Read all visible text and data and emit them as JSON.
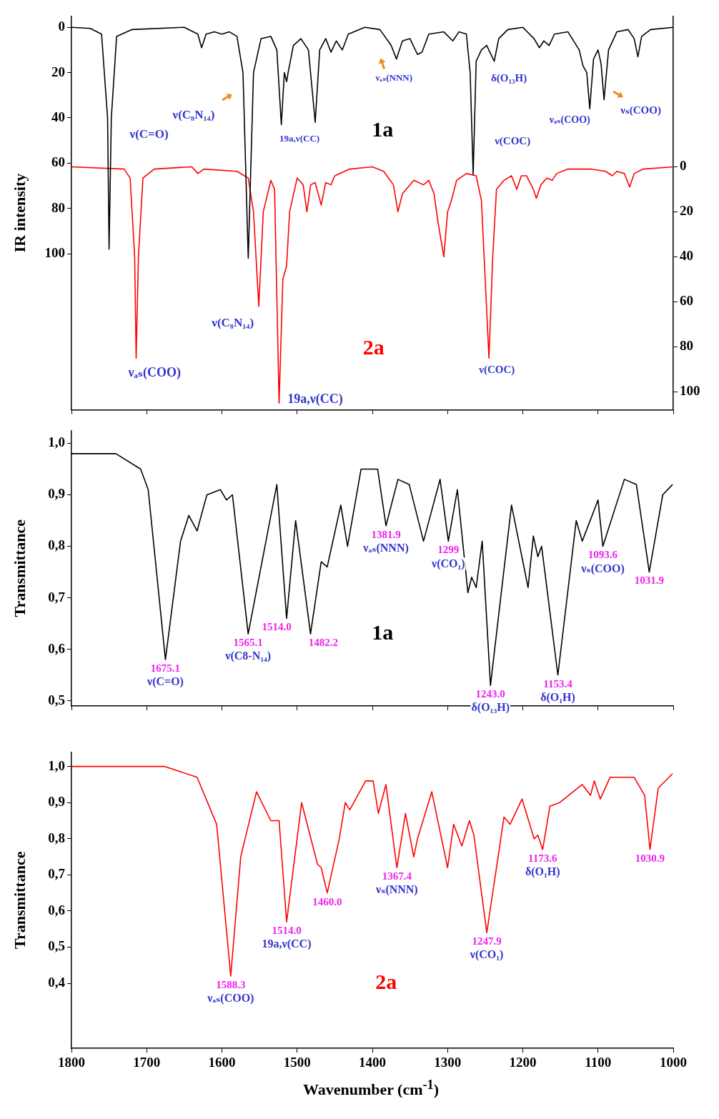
{
  "chart_data": [
    {
      "type": "line",
      "ylabel": "IR intensity",
      "xlim": [
        1800,
        1000
      ],
      "xticks": [
        {
          "value": 1800,
          "label": null
        },
        {
          "value": 1700,
          "label": null
        },
        {
          "value": 1600,
          "label": null
        },
        {
          "value": 1500,
          "label": null
        },
        {
          "value": 1400,
          "label": null
        },
        {
          "value": 1300,
          "label": null
        },
        {
          "value": 1200,
          "label": null
        },
        {
          "value": 1100,
          "label": null
        },
        {
          "value": 1000,
          "label": null
        }
      ],
      "ylim": [
        169,
        -5
      ],
      "yticks": [
        0,
        20,
        40,
        60,
        80,
        100
      ],
      "y2lim": [
        108,
        -67
      ],
      "y2ticks": [
        0,
        20,
        40,
        60,
        80,
        100
      ],
      "tick_labels": "y",
      "series": [
        {
          "name": "1a",
          "color": "#000000",
          "x": [
            1800,
            1775,
            1760,
            1752,
            1750,
            1747,
            1740,
            1720,
            1650,
            1632,
            1627,
            1621,
            1610,
            1600,
            1590,
            1580,
            1572,
            1565,
            1558,
            1548,
            1535,
            1527,
            1521,
            1517,
            1514,
            1512,
            1505,
            1495,
            1485,
            1476,
            1470,
            1462,
            1455,
            1448,
            1440,
            1432,
            1410,
            1390,
            1375,
            1368,
            1360,
            1350,
            1340,
            1334,
            1325,
            1305,
            1293,
            1285,
            1275,
            1270,
            1266,
            1262,
            1255,
            1248,
            1238,
            1232,
            1220,
            1200,
            1185,
            1178,
            1172,
            1165,
            1158,
            1140,
            1125,
            1120,
            1115,
            1111,
            1106,
            1100,
            1096,
            1092,
            1086,
            1075,
            1060,
            1052,
            1047,
            1042,
            1030,
            1000
          ],
          "values": [
            0,
            0.5,
            3,
            40,
            98,
            40,
            4,
            1,
            0,
            3,
            9,
            3,
            2,
            3,
            2,
            4,
            20,
            102,
            20,
            5,
            4,
            10,
            43,
            20,
            24,
            20,
            8,
            5,
            10,
            42,
            10,
            5,
            11,
            6,
            10,
            3,
            0,
            1,
            8,
            14,
            6,
            5,
            12,
            11,
            3,
            2,
            6,
            2,
            3,
            20,
            65,
            15,
            10,
            8,
            15,
            5,
            1,
            0,
            5,
            9,
            6,
            8,
            3,
            2,
            10,
            17,
            20,
            36,
            14,
            10,
            16,
            32,
            10,
            2,
            1,
            5,
            13,
            4,
            1,
            0
          ]
        },
        {
          "name": "2a",
          "color": "#ff0000",
          "axis": "y2",
          "x": [
            1800,
            1730,
            1722,
            1716,
            1714,
            1711,
            1705,
            1690,
            1640,
            1632,
            1624,
            1580,
            1565,
            1558,
            1551,
            1545,
            1535,
            1530,
            1524,
            1519,
            1514,
            1510,
            1500,
            1492,
            1487,
            1482,
            1476,
            1468,
            1462,
            1455,
            1450,
            1430,
            1400,
            1385,
            1372,
            1366,
            1360,
            1355,
            1345,
            1332,
            1325,
            1318,
            1313,
            1305,
            1300,
            1295,
            1288,
            1275,
            1262,
            1255,
            1250,
            1245,
            1240,
            1235,
            1225,
            1215,
            1208,
            1202,
            1195,
            1186,
            1182,
            1176,
            1168,
            1161,
            1155,
            1140,
            1110,
            1090,
            1081,
            1075,
            1065,
            1058,
            1052,
            1040,
            1000
          ],
          "values": [
            0,
            1,
            5,
            40,
            85,
            40,
            5,
            1,
            0,
            3,
            1,
            2,
            5,
            20,
            62,
            20,
            6,
            10,
            105,
            50,
            44,
            20,
            5,
            8,
            20,
            8,
            7,
            17,
            7,
            8,
            4,
            1,
            0,
            2,
            8,
            20,
            12,
            10,
            6,
            8,
            6,
            12,
            24,
            40,
            20,
            15,
            6,
            3,
            4,
            15,
            50,
            85,
            40,
            10,
            6,
            4,
            10,
            4,
            4,
            10,
            14,
            8,
            5,
            6,
            3,
            1,
            1,
            2,
            4,
            2,
            3,
            9,
            3,
            1,
            0
          ]
        }
      ],
      "annotations": [
        "ν(C=O)",
        "ν(C₈N₁₄)",
        "19a,ν(CC)",
        "νₐₛ(NNN)",
        "δ(O₁₃H)",
        "ν(COC)",
        "νₐₛ(COO)",
        "νₛ(COO)",
        "ν(C₈N₁₄)",
        "νₐₛ(COO)",
        "19a,ν(CC)",
        "ν(COC)"
      ]
    },
    {
      "type": "line",
      "ylabel": "Transmittance",
      "xlim": [
        1800,
        1000
      ],
      "xticks": [
        {
          "value": 1800,
          "label": null
        },
        {
          "value": 1700,
          "label": null
        },
        {
          "value": 1600,
          "label": null
        },
        {
          "value": 1500,
          "label": null
        },
        {
          "value": 1400,
          "label": null
        },
        {
          "value": 1300,
          "label": null
        },
        {
          "value": 1200,
          "label": null
        },
        {
          "value": 1100,
          "label": null
        },
        {
          "value": 1000,
          "label": null
        }
      ],
      "ylim": [
        0.49,
        1.025
      ],
      "yticks": [
        {
          "value": 0.5,
          "label": "0,5"
        },
        {
          "value": 0.6,
          "label": "0,6"
        },
        {
          "value": 0.7,
          "label": "0,7"
        },
        {
          "value": 0.8,
          "label": "0,8"
        },
        {
          "value": 0.9,
          "label": "0,9"
        },
        {
          "value": 1,
          "label": "1,0"
        }
      ],
      "tick_labels": "y",
      "series": [
        {
          "name": "1a",
          "color": "#000000",
          "x": [
            1800,
            1741,
            1708,
            1698,
            1675.1,
            1655,
            1644,
            1633,
            1620,
            1602,
            1594,
            1586,
            1565.1,
            1527,
            1514,
            1502,
            1482.2,
            1468,
            1460,
            1442,
            1433,
            1415,
            1393,
            1381.9,
            1366,
            1351,
            1332,
            1310,
            1299,
            1287,
            1273,
            1268,
            1262,
            1254,
            1243,
            1215,
            1193,
            1186,
            1180,
            1175,
            1153.4,
            1129,
            1121,
            1100,
            1093.6,
            1065,
            1049,
            1031.9,
            1014,
            1001
          ],
          "values": [
            0.98,
            0.98,
            0.95,
            0.91,
            0.58,
            0.81,
            0.86,
            0.83,
            0.9,
            0.91,
            0.89,
            0.9,
            0.63,
            0.92,
            0.66,
            0.85,
            0.63,
            0.77,
            0.76,
            0.88,
            0.8,
            0.95,
            0.95,
            0.84,
            0.93,
            0.92,
            0.81,
            0.93,
            0.81,
            0.91,
            0.71,
            0.74,
            0.72,
            0.81,
            0.53,
            0.88,
            0.72,
            0.82,
            0.78,
            0.8,
            0.55,
            0.85,
            0.81,
            0.89,
            0.8,
            0.93,
            0.92,
            0.75,
            0.9,
            0.92
          ]
        }
      ],
      "annotations": [
        {
          "text": "1675.1",
          "x": 1675.1,
          "y": 0.58
        },
        {
          "text": "ν(C=O)",
          "x": 1675.1,
          "y": 0.58
        },
        {
          "text": "1565.1",
          "x": 1565.1,
          "y": 0.63
        },
        {
          "text": "ν(C8-N₁₄)",
          "x": 1565.1,
          "y": 0.63
        },
        {
          "text": "1514.0",
          "x": 1514.0,
          "y": 0.66
        },
        {
          "text": "1482.2",
          "x": 1482.2,
          "y": 0.63
        },
        {
          "text": "1381.9",
          "x": 1381.9,
          "y": 0.84
        },
        {
          "text": "νₐₛ(NNN)",
          "x": 1381.9,
          "y": 0.84
        },
        {
          "text": "1299",
          "x": 1299,
          "y": 0.81
        },
        {
          "text": "ν(CO₁)",
          "x": 1299,
          "y": 0.81
        },
        {
          "text": "1243.0",
          "x": 1243.0,
          "y": 0.53
        },
        {
          "text": "δ(O₁₃H)",
          "x": 1243.0,
          "y": 0.53
        },
        {
          "text": "1153.4",
          "x": 1153.4,
          "y": 0.55
        },
        {
          "text": "δ(O₁H)",
          "x": 1153.4,
          "y": 0.55
        },
        {
          "text": "1093.6",
          "x": 1093.6,
          "y": 0.8
        },
        {
          "text": "νₛ(COO)",
          "x": 1093.6,
          "y": 0.8
        },
        {
          "text": "1031.9",
          "x": 1031.9,
          "y": 0.75
        }
      ]
    },
    {
      "type": "line",
      "ylabel": "Transmittance",
      "xlabel": "Wavenumber (cm$^{-1}$)",
      "xlim": [
        1800,
        1000
      ],
      "xticks": [
        1800,
        1700,
        1600,
        1500,
        1400,
        1300,
        1200,
        1100,
        1000
      ],
      "ylim": [
        0.22,
        1.04
      ],
      "yticks": [
        {
          "value": 0.4,
          "label": "0,4"
        },
        {
          "value": 0.5,
          "label": "0,5"
        },
        {
          "value": 0.6,
          "label": "0,6"
        },
        {
          "value": 0.7,
          "label": "0,7"
        },
        {
          "value": 0.8,
          "label": "0,8"
        },
        {
          "value": 0.9,
          "label": "0,9"
        },
        {
          "value": 1,
          "label": "1,0"
        }
      ],
      "series": [
        {
          "name": "2a",
          "color": "#ff0000",
          "x": [
            1800,
            1676,
            1633,
            1607,
            1588.3,
            1575,
            1554,
            1535,
            1524,
            1514,
            1494,
            1473,
            1468,
            1460,
            1444,
            1436,
            1430,
            1409,
            1399,
            1392,
            1382,
            1367.4,
            1356,
            1345,
            1340,
            1321,
            1300,
            1292,
            1281,
            1271,
            1265,
            1247.9,
            1225,
            1217,
            1201,
            1185,
            1180,
            1173.6,
            1164,
            1151,
            1121,
            1110,
            1105,
            1097,
            1084,
            1052,
            1038,
            1030.9,
            1020,
            1001
          ],
          "values": [
            1.0,
            1.0,
            0.97,
            0.84,
            0.42,
            0.75,
            0.93,
            0.85,
            0.85,
            0.57,
            0.9,
            0.73,
            0.72,
            0.65,
            0.8,
            0.9,
            0.88,
            0.96,
            0.96,
            0.87,
            0.95,
            0.72,
            0.87,
            0.75,
            0.8,
            0.93,
            0.72,
            0.84,
            0.78,
            0.85,
            0.81,
            0.54,
            0.86,
            0.84,
            0.91,
            0.8,
            0.81,
            0.77,
            0.89,
            0.9,
            0.95,
            0.92,
            0.96,
            0.91,
            0.97,
            0.97,
            0.92,
            0.77,
            0.94,
            0.98
          ]
        }
      ],
      "annotations": [
        {
          "text": "1588.3",
          "x": 1588.3,
          "y": 0.42
        },
        {
          "text": "νₐₛ(COO)",
          "x": 1588.3,
          "y": 0.42
        },
        {
          "text": "1514.0",
          "x": 1514.0,
          "y": 0.57
        },
        {
          "text": "19a,ν(CC)",
          "x": 1514.0,
          "y": 0.57
        },
        {
          "text": "1460.0",
          "x": 1460.0,
          "y": 0.65
        },
        {
          "text": "1367.4",
          "x": 1367.4,
          "y": 0.72
        },
        {
          "text": "νₛ(NNN)",
          "x": 1367.4,
          "y": 0.72
        },
        {
          "text": "1247.9",
          "x": 1247.9,
          "y": 0.54
        },
        {
          "text": "ν(CO₁)",
          "x": 1247.9,
          "y": 0.54
        },
        {
          "text": "1173.6",
          "x": 1173.6,
          "y": 0.77
        },
        {
          "text": "δ(O₁H)",
          "x": 1173.6,
          "y": 0.77
        },
        {
          "text": "1030.9",
          "x": 1030.9,
          "y": 0.77
        }
      ]
    }
  ]
}
